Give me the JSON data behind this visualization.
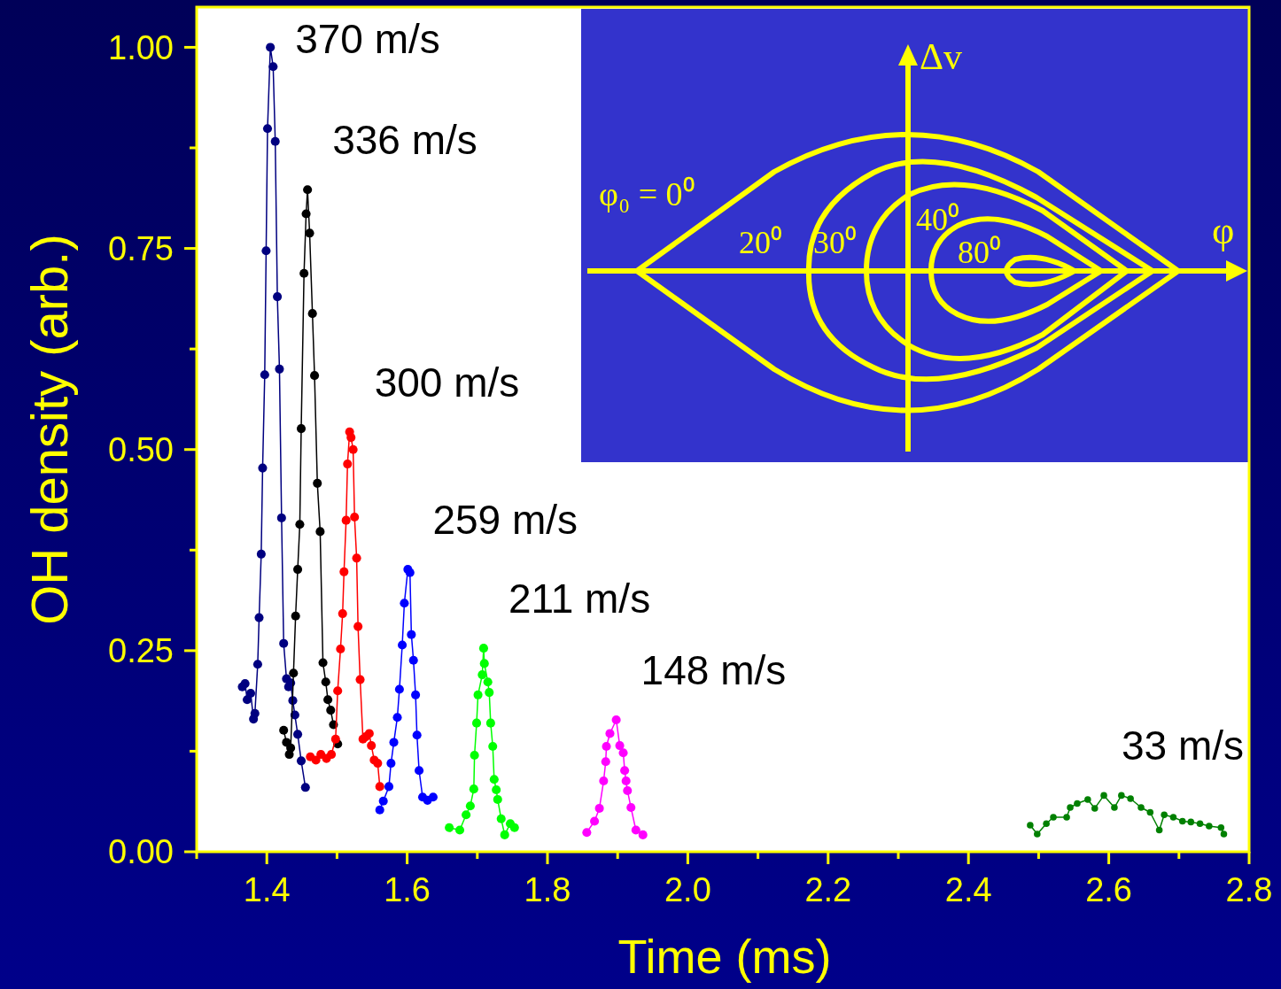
{
  "chart_data": {
    "type": "line",
    "xlabel": "Time (ms)",
    "ylabel": "OH density (arb.)",
    "xlim": [
      1.3,
      2.8
    ],
    "ylim": [
      0,
      1.05
    ],
    "xticks": [
      {
        "value": 1.3,
        "label": null
      },
      1.4,
      {
        "value": 1.5,
        "label": null
      },
      1.6,
      {
        "value": 1.7,
        "label": null
      },
      1.8,
      {
        "value": 1.9,
        "label": null
      },
      {
        "value": 2,
        "label": "2.0"
      },
      {
        "value": 2.1,
        "label": null
      },
      2.2,
      {
        "value": 2.3,
        "label": null
      },
      2.4,
      {
        "value": 2.5,
        "label": null
      },
      2.6,
      {
        "value": 2.7,
        "label": null
      },
      2.8
    ],
    "yticks": [
      {
        "value": 0,
        "label": "0.00"
      },
      {
        "value": 0.125,
        "label": null
      },
      {
        "value": 0.25,
        "label": "0.25"
      },
      {
        "value": 0.375,
        "label": null
      },
      {
        "value": 0.5,
        "label": "0.50"
      },
      {
        "value": 0.625,
        "label": null
      },
      {
        "value": 0.75,
        "label": "0.75"
      },
      {
        "value": 0.875,
        "label": null
      },
      {
        "value": 1,
        "label": "1.00"
      }
    ],
    "grid": false,
    "marker": "circle",
    "line_style": "solid",
    "annotations": [
      "Δv",
      "φ₀ = 0⁰",
      "20⁰",
      "30⁰",
      "40⁰",
      "80⁰",
      "φ"
    ],
    "series": [
      {
        "name": "370 m/s",
        "color": "#000080",
        "x": [
          1.365,
          1.369,
          1.372,
          1.377,
          1.381,
          1.383,
          1.387,
          1.389,
          1.392,
          1.394,
          1.397,
          1.399,
          1.401,
          1.405,
          1.409,
          1.412,
          1.415,
          1.418,
          1.421,
          1.424,
          1.428,
          1.431,
          1.434,
          1.437,
          1.44,
          1.444,
          1.449,
          1.455
        ],
        "values": [
          0.205,
          0.209,
          0.189,
          0.197,
          0.165,
          0.172,
          0.233,
          0.291,
          0.37,
          0.477,
          0.593,
          0.747,
          0.899,
          1.0,
          0.976,
          0.883,
          0.69,
          0.6,
          0.415,
          0.259,
          0.215,
          0.205,
          0.21,
          0.188,
          0.17,
          0.146,
          0.113,
          0.08
        ]
      },
      {
        "name": "336 m/s",
        "color": "#000000",
        "x": [
          1.424,
          1.428,
          1.432,
          1.434,
          1.438,
          1.441,
          1.444,
          1.447,
          1.449,
          1.453,
          1.456,
          1.458,
          1.461,
          1.465,
          1.468,
          1.472,
          1.476,
          1.48,
          1.484,
          1.487,
          1.491,
          1.495,
          1.499,
          1.501
        ],
        "values": [
          0.151,
          0.136,
          0.121,
          0.129,
          0.222,
          0.293,
          0.351,
          0.407,
          0.526,
          0.719,
          0.793,
          0.823,
          0.769,
          0.669,
          0.592,
          0.458,
          0.398,
          0.235,
          0.211,
          0.189,
          0.176,
          0.158,
          null,
          0.134
        ]
      },
      {
        "name": "300 m/s",
        "color": "#ff0000",
        "x": [
          1.462,
          1.47,
          1.477,
          1.485,
          1.492,
          1.498,
          1.501,
          1.505,
          1.508,
          1.51,
          1.513,
          1.515,
          1.518,
          1.52,
          1.523,
          1.525,
          1.528,
          1.53,
          1.533,
          1.537,
          1.541,
          1.546,
          1.549,
          1.553,
          1.558,
          1.561
        ],
        "values": [
          0.118,
          0.114,
          0.121,
          0.116,
          0.121,
          0.14,
          0.2,
          0.252,
          0.296,
          0.348,
          0.412,
          0.482,
          0.522,
          0.515,
          0.5,
          0.416,
          0.365,
          0.28,
          0.214,
          0.14,
          0.143,
          0.147,
          0.132,
          0.114,
          0.11,
          0.081
        ]
      },
      {
        "name": "259 m/s",
        "color": "#0000ff",
        "x": [
          1.561,
          1.566,
          1.574,
          1.577,
          1.581,
          1.586,
          1.589,
          1.593,
          1.596,
          1.601,
          1.604,
          1.606,
          1.609,
          1.612,
          1.614,
          1.617,
          1.622,
          1.629,
          1.637
        ],
        "values": [
          0.052,
          0.063,
          0.081,
          0.11,
          0.136,
          0.167,
          0.202,
          0.257,
          0.309,
          0.351,
          0.347,
          0.27,
          0.238,
          0.195,
          0.145,
          0.101,
          0.068,
          0.064,
          0.068
        ]
      },
      {
        "name": "211 m/s",
        "color": "#00ff00",
        "x": [
          1.66,
          1.675,
          1.684,
          1.69,
          1.695,
          1.696,
          1.699,
          1.701,
          1.707,
          1.709,
          1.71,
          1.715,
          1.717,
          1.719,
          1.722,
          1.724,
          1.727,
          1.729,
          1.734,
          1.739,
          1.747,
          1.753
        ],
        "values": [
          0.03,
          0.027,
          0.046,
          0.057,
          0.078,
          0.12,
          0.16,
          0.195,
          0.22,
          0.253,
          0.234,
          0.211,
          0.198,
          0.16,
          0.131,
          0.09,
          0.077,
          0.065,
          0.041,
          0.021,
          0.035,
          0.03
        ]
      },
      {
        "name": "148 m/s",
        "color": "#ff00ff",
        "x": [
          1.856,
          1.867,
          1.874,
          1.88,
          1.883,
          1.884,
          1.889,
          1.898,
          1.903,
          1.908,
          1.91,
          1.912,
          1.914,
          1.919,
          1.926,
          1.936
        ],
        "values": [
          0.024,
          0.038,
          0.054,
          0.088,
          0.112,
          0.131,
          0.147,
          0.164,
          0.132,
          0.123,
          0.101,
          0.088,
          0.076,
          0.055,
          0.027,
          0.021
        ]
      },
      {
        "name": "33 m/s",
        "color": "#008000",
        "x": [
          2.488,
          2.498,
          2.511,
          2.521,
          2.54,
          2.545,
          2.555,
          2.57,
          2.58,
          2.593,
          2.608,
          2.618,
          2.631,
          2.646,
          2.659,
          2.672,
          2.679,
          2.692,
          2.705,
          2.717,
          2.73,
          2.743,
          2.76,
          2.764
        ],
        "values": [
          0.033,
          0.022,
          0.035,
          0.043,
          0.043,
          0.055,
          0.06,
          0.065,
          0.054,
          0.07,
          0.055,
          0.07,
          0.066,
          0.055,
          0.049,
          0.027,
          0.046,
          0.043,
          0.038,
          0.037,
          0.035,
          0.032,
          0.03,
          0.022
        ]
      }
    ]
  }
}
